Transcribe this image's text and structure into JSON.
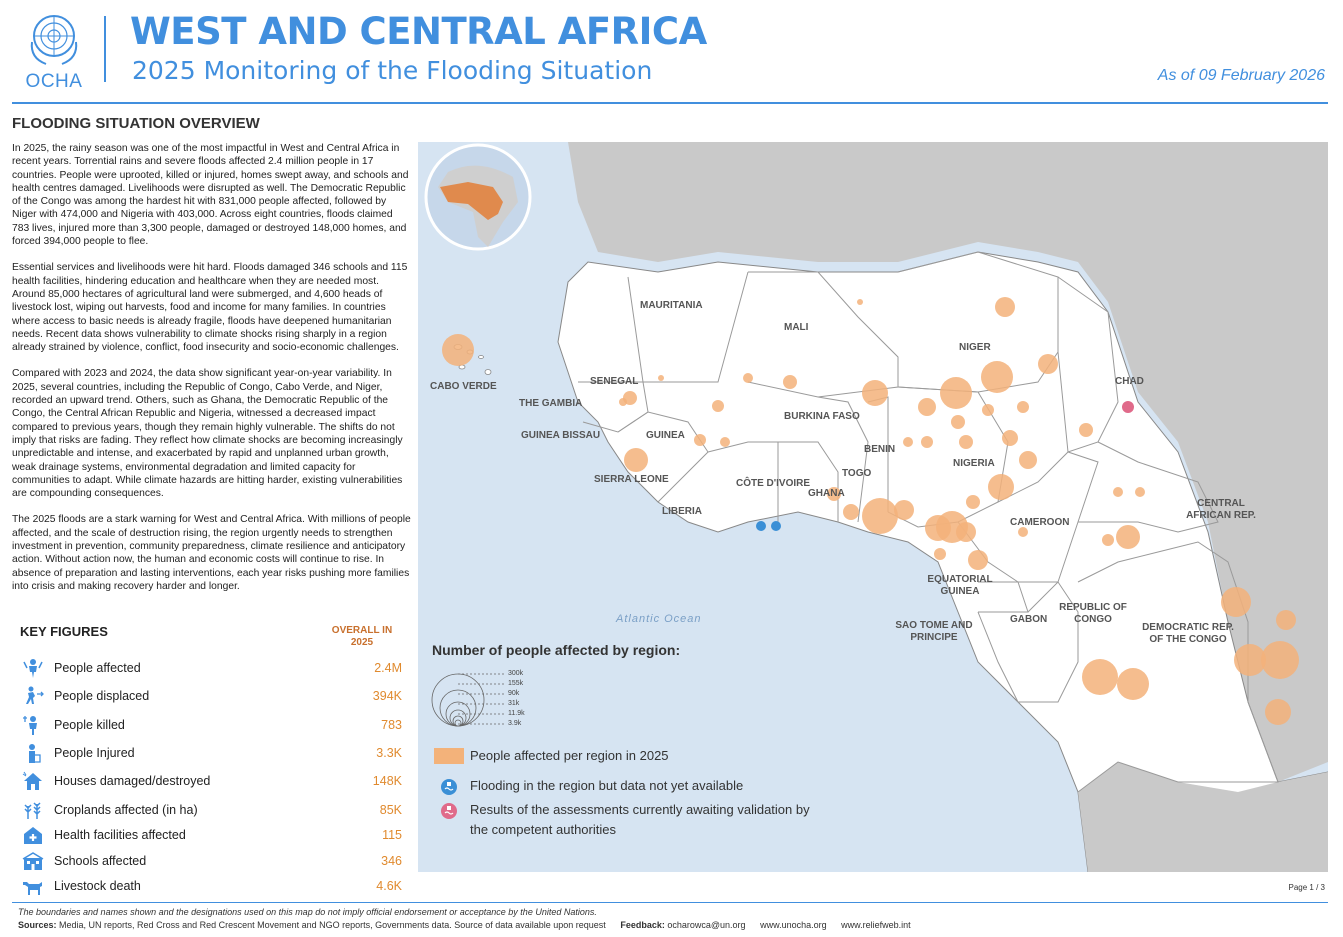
{
  "header": {
    "logo_text": "OCHA",
    "title": "WEST AND CENTRAL AFRICA",
    "subtitle": "2025 Monitoring of the Flooding Situation",
    "date": "As of 09 February 2026"
  },
  "overview": {
    "title": "FLOODING SITUATION OVERVIEW",
    "paragraphs": [
      "In 2025, the rainy season was one of the most impactful in West and Central Africa in recent years. Torrential rains and severe floods affected 2.4 million people in 17 countries. People were uprooted, killed or injured, homes swept away, and schools and health centres damaged. Livelihoods were disrupted as well. The Democratic Republic of the Congo was among the hardest hit with 831,000 people affected, followed by Niger with 474,000 and Nigeria with 403,000. Across eight countries, floods claimed 783 lives, injured more than 3,300 people, damaged or destroyed 148,000 homes, and forced 394,000 people to flee.",
      "Essential services and livelihoods were hit hard. Floods damaged 346 schools and 115 health facilities, hindering education and healthcare when they are needed most. Around 85,000 hectares of agricultural land were submerged, and 4,600 heads of livestock lost, wiping out harvests, food and income for many families. In countries where access to basic needs is already fragile, floods have deepened humanitarian needs. Recent data shows vulnerability to climate shocks rising sharply in a region already strained by violence, conflict, food insecurity and socio-economic challenges.",
      "Compared with 2023 and 2024, the data show significant year-on-year variability. In 2025, several countries, including the Republic of Congo, Cabo Verde, and Niger, recorded an upward trend. Others, such as Ghana, the Democratic Republic of the Congo, the Central African Republic and Nigeria, witnessed a decreased impact compared to previous years, though they remain highly vulnerable. The shifts do not imply that risks are fading. They reflect how climate shocks are becoming increasingly unpredictable and intense, and exacerbated by rapid and unplanned urban growth, weak drainage systems, environmental degradation and limited capacity for communities to adapt. While climate hazards are hitting harder, existing vulnerabilities are compounding consequences.",
      "The 2025 floods are a stark warning for West and Central Africa. With millions of people affected, and the scale of destruction rising, the region urgently needs to strengthen investment in prevention, community preparedness, climate resilience and anticipatory action. Without action now, the human and economic costs will continue to rise. In absence of preparation and lasting interventions, each year risks pushing more families into crisis and making recovery harder and longer."
    ]
  },
  "key_figures": {
    "title": "KEY FIGURES",
    "column_header": "OVERALL IN 2025",
    "rows": [
      {
        "label": "People affected",
        "value": "2.4M",
        "icon": "people-affected-icon"
      },
      {
        "label": "People displaced",
        "value": "394K",
        "icon": "people-displaced-icon"
      },
      {
        "label": "People killed",
        "value": "783",
        "icon": "people-killed-icon"
      },
      {
        "label": "People Injured",
        "value": "3.3K",
        "icon": "people-injured-icon"
      },
      {
        "label": "Houses damaged/destroyed",
        "value": "148K",
        "icon": "house-damaged-icon"
      },
      {
        "label": "Croplands affected (in ha)",
        "value": "85K",
        "icon": "cropland-icon"
      },
      {
        "label": "Health facilities affected",
        "value": "115",
        "icon": "health-facility-icon"
      },
      {
        "label": "Schools affected",
        "value": "346",
        "icon": "school-icon"
      },
      {
        "label": "Livestock death",
        "value": "4.6K",
        "icon": "livestock-icon"
      }
    ]
  },
  "map": {
    "ocean_label": "Atlantic Ocean",
    "countries": [
      "MAURITANIA",
      "MALI",
      "NIGER",
      "CHAD",
      "SENEGAL",
      "THE GAMBIA",
      "GUINEA BISSAU",
      "GUINEA",
      "SIERRA LEONE",
      "LIBERIA",
      "CÔTE D'IVOIRE",
      "GHANA",
      "TOGO",
      "BENIN",
      "BURKINA FASO",
      "NIGERIA",
      "CAMEROON",
      "CENTRAL AFRICAN REP.",
      "EQUATORIAL GUINEA",
      "SAO TOME AND PRINCIPE",
      "GABON",
      "REPUBLIC OF CONGO",
      "DEMOCRATIC REP. OF THE CONGO",
      "CABO VERDE"
    ],
    "legend": {
      "title": "Number of people affected by region:",
      "size_values": [
        "300k",
        "155k",
        "90k",
        "31k",
        "11.9k",
        "3.9k"
      ],
      "affected_label": "People affected per region in 2025",
      "no_data_label": "Flooding in the region but data not yet available",
      "awaiting_label": "Results of the assessments currently awaiting validation by the competent authorities"
    },
    "colors": {
      "bubble": "#f3b27a",
      "no_data": "#3a8fd6",
      "awaiting": "#e06a8a",
      "ocean": "#d6e4f2",
      "land": "#ffffff",
      "outside": "#c9c9c9"
    }
  },
  "page": "Page 1 / 3",
  "footer": {
    "disclaimer": "The boundaries and names shown and the designations used on this map do not imply official endorsement or acceptance by the United Nations.",
    "sources_label": "Sources:",
    "sources": "Media, UN reports, Red Cross and Red Crescent Movement and NGO reports, Governments data. Source of data available upon request",
    "feedback_label": "Feedback:",
    "email": "ocharowca@un.org",
    "site1": "www.unocha.org",
    "site2": "www.reliefweb.int"
  }
}
